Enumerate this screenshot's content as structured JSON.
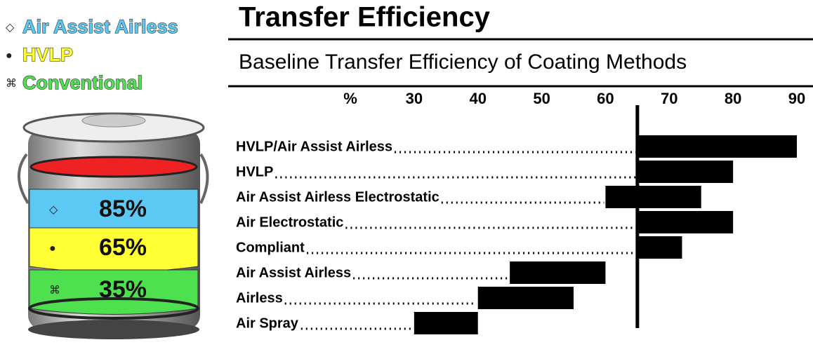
{
  "title": "Transfer Efficiency",
  "legend": [
    {
      "symbol": "◇",
      "label": "Air Assist Airless",
      "color": "#5cc8f4",
      "percent": "85%"
    },
    {
      "symbol": "●",
      "label": "HVLP",
      "color": "#ffff33",
      "percent": "65%"
    },
    {
      "symbol": "⌘",
      "label": "Conventional",
      "color": "#4ee04e",
      "percent": "35%"
    }
  ],
  "chart_data": {
    "type": "range_bar",
    "subtitle": "Baseline Transfer Efficiency of Coating Methods",
    "categories": [
      "HVLP/Air Assist Airless",
      "HVLP",
      "Air Assist Airless Electrostatic",
      "Air Electrostatic",
      "Compliant",
      "Air Assist Airless",
      "Airless",
      "Air Spray"
    ],
    "low": [
      65,
      65,
      60,
      65,
      65,
      45,
      40,
      30
    ],
    "high": [
      90,
      80,
      75,
      80,
      72,
      60,
      55,
      40
    ],
    "color": "#000000",
    "reference_line": 65,
    "xlim": [
      20,
      90
    ],
    "xticks": [
      {
        "value": 20,
        "label": "%"
      },
      30,
      40,
      50,
      60,
      70,
      80,
      90
    ]
  }
}
